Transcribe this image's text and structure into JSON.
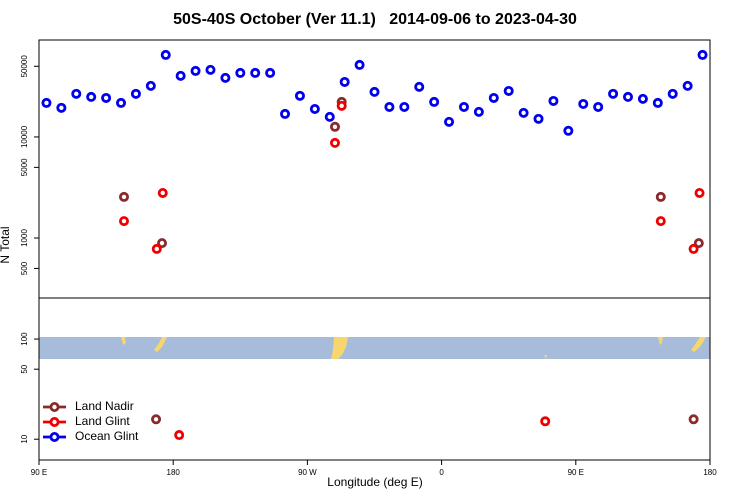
{
  "chart_data": [
    {
      "type": "scatter",
      "title": "50S-40S October (Ver 11.1)   2014-09-06 to 2023-04-30",
      "y_label": "N Total",
      "log_y": true,
      "xlim": [
        90,
        540
      ],
      "ylim": [
        255,
        91000
      ],
      "yticks": [
        500,
        1000,
        5000,
        10000,
        50000
      ],
      "series": [
        {
          "color": "#8b2a2a",
          "x": [
            147,
            172.5,
            288.5,
            293,
            507,
            532.5
          ],
          "values": [
            2550,
            890,
            12600,
            22200,
            2550,
            890
          ]
        },
        {
          "color": "#ee0000",
          "x": [
            147,
            173,
            169,
            288.5,
            293,
            507,
            533,
            529
          ],
          "values": [
            1470,
            2790,
            780,
            8730,
            20300,
            1470,
            2790,
            780
          ]
        },
        {
          "color": "#0000ee",
          "x": [
            95,
            105,
            115,
            125,
            135,
            145,
            155,
            165,
            175,
            185,
            195,
            205,
            215,
            225,
            235,
            245,
            255,
            265,
            275,
            285,
            295,
            305,
            315,
            325,
            335,
            345,
            355,
            365,
            375,
            385,
            395,
            405,
            415,
            425,
            435,
            445,
            455,
            465,
            475,
            485,
            495,
            505,
            515,
            525,
            535
          ],
          "values": [
            21700,
            19400,
            26700,
            24900,
            24300,
            21700,
            26700,
            32000,
            64800,
            40200,
            45000,
            46100,
            38400,
            43000,
            43000,
            43000,
            16900,
            25500,
            18900,
            15800,
            35000,
            51600,
            27900,
            19800,
            19800,
            31300,
            22200,
            14100,
            19800,
            17700,
            24300,
            28500,
            17300,
            15100,
            22700,
            11500,
            21200,
            19800,
            26700,
            24900,
            23800,
            21700,
            26700,
            32000,
            64800
          ]
        }
      ]
    },
    {
      "type": "scatter",
      "x_label": "Longitude (deg E)",
      "log_y": true,
      "xlim": [
        90,
        540
      ],
      "ylim": [
        6.2,
        257
      ],
      "xticks": [
        {
          "value": 90,
          "label": "90 E"
        },
        180,
        {
          "value": 270,
          "label": "90 W"
        },
        {
          "value": 360,
          "label": "0"
        },
        {
          "value": 450,
          "label": "90 E"
        },
        {
          "value": 540,
          "label": "180"
        }
      ],
      "yticks": [
        10,
        50,
        100
      ],
      "legend": "bottomleft",
      "series": [
        {
          "name": "Land Nadir",
          "color": "#8b2a2a",
          "x": [
            168.5,
            529
          ],
          "values": [
            15.8,
            15.8
          ]
        },
        {
          "name": "Land Glint",
          "color": "#ee0000",
          "x": [
            184,
            429.5
          ],
          "values": [
            11,
            15.1
          ]
        },
        {
          "name": "Ocean Glint",
          "color": "#0000ee",
          "x": [],
          "values": []
        }
      ]
    }
  ]
}
